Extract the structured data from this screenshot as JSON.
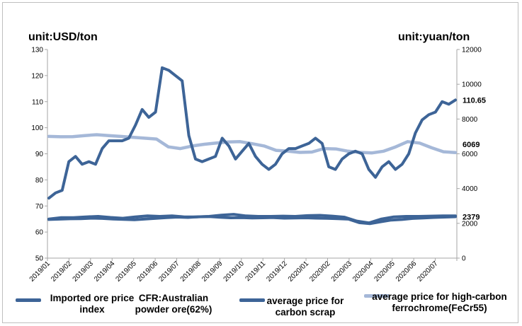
{
  "chart_data": {
    "type": "line",
    "x_labels": [
      "2019/01",
      "2019/02",
      "2019/03",
      "2019/04",
      "2019/05",
      "2019/06",
      "2019/07",
      "2019/08",
      "2019/09",
      "2019/10",
      "2019/11",
      "2019/12",
      "2020/01",
      "2020/02",
      "2020/03",
      "2020/04",
      "2020/05",
      "2020/06",
      "2020/07"
    ],
    "left_axis": {
      "unit": "unit:USD/ton",
      "min": 50,
      "max": 130,
      "step": 10
    },
    "right_axis": {
      "unit": "unit:yuan/ton",
      "min": 0,
      "max": 12000,
      "step": 2000
    },
    "series": [
      {
        "name": "Imported ore price index",
        "axis": "left",
        "color": "#3d6497",
        "values": [
          73,
          75,
          76,
          87,
          89,
          86,
          87,
          86,
          92,
          95,
          95,
          95,
          96,
          101,
          107,
          104,
          106,
          123,
          122,
          120,
          118,
          97,
          88,
          87,
          88,
          89,
          96,
          93,
          88,
          91,
          94,
          89,
          86,
          84,
          86,
          90,
          92,
          92,
          93,
          94,
          96,
          94,
          85,
          84,
          88,
          90,
          91,
          90,
          84,
          81,
          85,
          87,
          84,
          86,
          90,
          98,
          103,
          105,
          106,
          110,
          109,
          110.65
        ],
        "end_label": "110.65"
      },
      {
        "name": "CFR:Australian powder ore(62%)",
        "axis": "left",
        "color": "#3d6497",
        "values": [
          65,
          65.5,
          65.5,
          65.8,
          66,
          65.6,
          65.3,
          65.8,
          66.2,
          66,
          66.2,
          65.8,
          65.8,
          66,
          66.5,
          66.8,
          66.2,
          66,
          66,
          66.1,
          66,
          66.3,
          66.4,
          66.1,
          65.7,
          64.2,
          63.5,
          65,
          65.8,
          66,
          66,
          66.1,
          66.2,
          66.2
        ]
      },
      {
        "name": "average price for carbon scrap",
        "axis": "right",
        "color": "#3d6497",
        "values": [
          2220,
          2240,
          2260,
          2270,
          2300,
          2280,
          2250,
          2230,
          2210,
          2250,
          2290,
          2330,
          2360,
          2340,
          2380,
          2390,
          2350,
          2320,
          2330,
          2310,
          2320,
          2330,
          2300,
          2310,
          2320,
          2300,
          2290,
          2270,
          2240,
          2040,
          1980,
          2090,
          2190,
          2220,
          2280,
          2310,
          2340,
          2360,
          2379
        ],
        "end_label": "2379"
      },
      {
        "name": "average price for high-carbon ferrochrome(FeCr55)",
        "axis": "right",
        "color": "#a5b8d8",
        "values": [
          7000,
          6980,
          6990,
          7050,
          7100,
          7050,
          7000,
          6950,
          6900,
          6850,
          6400,
          6300,
          6450,
          6550,
          6620,
          6680,
          6700,
          6580,
          6450,
          6200,
          6150,
          6080,
          6100,
          6300,
          6280,
          6150,
          6080,
          6050,
          6150,
          6400,
          6700,
          6620,
          6350,
          6120,
          6069
        ],
        "end_label": "6069"
      }
    ]
  },
  "legend": [
    {
      "label": "Imported ore price\nindex"
    },
    {
      "label": "CFR:Australian\npowder ore(62%)"
    },
    {
      "label": "average price for\ncarbon scrap"
    },
    {
      "label": "average price for high-carbon\nferrochrome(FeCr55)"
    }
  ],
  "colors": {
    "dark_series": "#3d6497",
    "light_series": "#a5b8d8",
    "axis": "#a6a6a6"
  }
}
